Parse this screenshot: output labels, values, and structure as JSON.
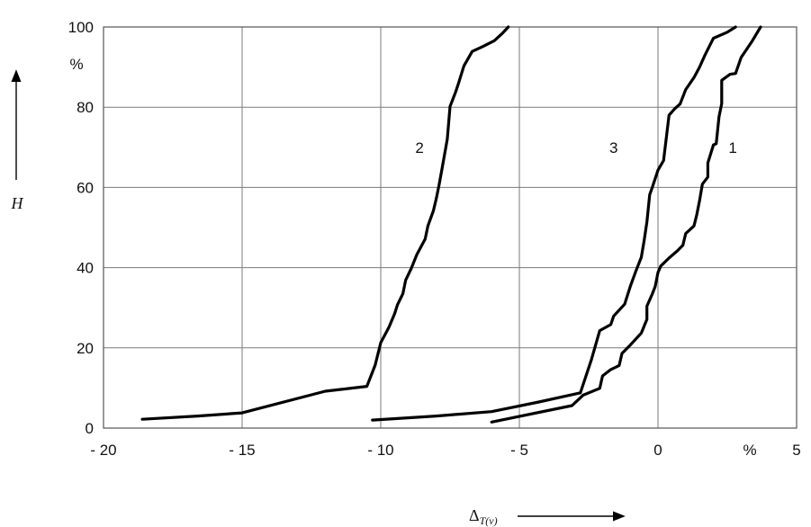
{
  "chart_data": {
    "type": "line",
    "xlim": [
      -20,
      5
    ],
    "ylim": [
      0,
      100
    ],
    "x_ticks": [
      {
        "value": -20,
        "label": "- 20"
      },
      {
        "value": -15,
        "label": "- 15"
      },
      {
        "value": -10,
        "label": "- 10"
      },
      {
        "value": -5,
        "label": "- 5"
      },
      {
        "value": 0,
        "label": "0"
      },
      {
        "value": 5,
        "label": "5"
      }
    ],
    "x_unit": "%",
    "y_ticks": [
      {
        "value": 0,
        "label": "0"
      },
      {
        "value": 20,
        "label": "20"
      },
      {
        "value": 40,
        "label": "40"
      },
      {
        "value": 60,
        "label": "60"
      },
      {
        "value": 80,
        "label": "80"
      },
      {
        "value": 100,
        "label": "100"
      }
    ],
    "y_unit": "%",
    "ylabel": "H",
    "xlabel_main": "Δ",
    "xlabel_sub": "T(ν)",
    "grid": true,
    "series": [
      {
        "name": "1",
        "label_position": [
          2.7,
          70
        ],
        "points": [
          [
            -6,
            1.5
          ],
          [
            -3.1,
            5.6
          ],
          [
            -2.7,
            8.2
          ],
          [
            -2.1,
            9.9
          ],
          [
            -2.0,
            13
          ],
          [
            -1.7,
            14.6
          ],
          [
            -1.4,
            15.6
          ],
          [
            -1.3,
            18.6
          ],
          [
            -1.0,
            20.7
          ],
          [
            -0.6,
            23.7
          ],
          [
            -0.4,
            27.1
          ],
          [
            -0.4,
            30.4
          ],
          [
            -0.2,
            33.5
          ],
          [
            -0.1,
            35.3
          ],
          [
            0,
            38.8
          ],
          [
            0.1,
            40.4
          ],
          [
            0.4,
            42.4
          ],
          [
            0.7,
            44.2
          ],
          [
            0.9,
            45.6
          ],
          [
            1.0,
            48.5
          ],
          [
            1.3,
            50.4
          ],
          [
            1.4,
            53.2
          ],
          [
            1.5,
            56.7
          ],
          [
            1.6,
            60.8
          ],
          [
            1.8,
            62.6
          ],
          [
            1.8,
            66.1
          ],
          [
            2.0,
            70.6
          ],
          [
            2.1,
            70.9
          ],
          [
            2.2,
            77.6
          ],
          [
            2.3,
            80.9
          ],
          [
            2.3,
            86.7
          ],
          [
            2.6,
            88.2
          ],
          [
            2.8,
            88.4
          ],
          [
            3.0,
            92.4
          ],
          [
            3.4,
            96.5
          ],
          [
            3.7,
            100
          ]
        ]
      },
      {
        "name": "2",
        "label_position": [
          -8.6,
          70
        ],
        "points": [
          [
            -18.6,
            2.2
          ],
          [
            -16.6,
            3.0
          ],
          [
            -15.0,
            3.8
          ],
          [
            -12.0,
            9.2
          ],
          [
            -10.5,
            10.4
          ],
          [
            -10.2,
            15.7
          ],
          [
            -10.0,
            21.3
          ],
          [
            -9.8,
            23.9
          ],
          [
            -9.7,
            25.2
          ],
          [
            -9.5,
            28.5
          ],
          [
            -9.4,
            30.7
          ],
          [
            -9.2,
            33.5
          ],
          [
            -9.1,
            36.9
          ],
          [
            -8.9,
            39.8
          ],
          [
            -8.7,
            43.2
          ],
          [
            -8.4,
            47.1
          ],
          [
            -8.3,
            50.4
          ],
          [
            -8.1,
            54.2
          ],
          [
            -8.0,
            57.1
          ],
          [
            -7.9,
            60.5
          ],
          [
            -7.8,
            64.3
          ],
          [
            -7.6,
            72.0
          ],
          [
            -7.5,
            80.2
          ],
          [
            -7.3,
            83.8
          ],
          [
            -7.2,
            85.8
          ],
          [
            -7.0,
            90.3
          ],
          [
            -6.7,
            93.9
          ],
          [
            -6.3,
            95.2
          ],
          [
            -5.9,
            96.6
          ],
          [
            -5.6,
            98.5
          ],
          [
            -5.4,
            100
          ]
        ]
      },
      {
        "name": "3",
        "label_position": [
          -1.6,
          70
        ],
        "points": [
          [
            -10.3,
            2.0
          ],
          [
            -8.0,
            3.0
          ],
          [
            -6.0,
            4.1
          ],
          [
            -4.3,
            6.5
          ],
          [
            -2.8,
            8.8
          ],
          [
            -2.4,
            17.1
          ],
          [
            -2.1,
            24.3
          ],
          [
            -1.7,
            25.8
          ],
          [
            -1.6,
            27.9
          ],
          [
            -1.2,
            30.9
          ],
          [
            -1.0,
            35.3
          ],
          [
            -0.8,
            39.1
          ],
          [
            -0.6,
            42.6
          ],
          [
            -0.5,
            46.7
          ],
          [
            -0.4,
            51.4
          ],
          [
            -0.3,
            58.2
          ],
          [
            -0.2,
            60.1
          ],
          [
            0,
            64.3
          ],
          [
            0.2,
            66.7
          ],
          [
            0.4,
            78.0
          ],
          [
            0.6,
            79.6
          ],
          [
            0.8,
            80.8
          ],
          [
            1.0,
            84.4
          ],
          [
            1.3,
            87.4
          ],
          [
            1.5,
            90.0
          ],
          [
            1.7,
            93.1
          ],
          [
            2.0,
            97.2
          ],
          [
            2.5,
            98.7
          ],
          [
            2.8,
            100
          ]
        ]
      }
    ]
  }
}
